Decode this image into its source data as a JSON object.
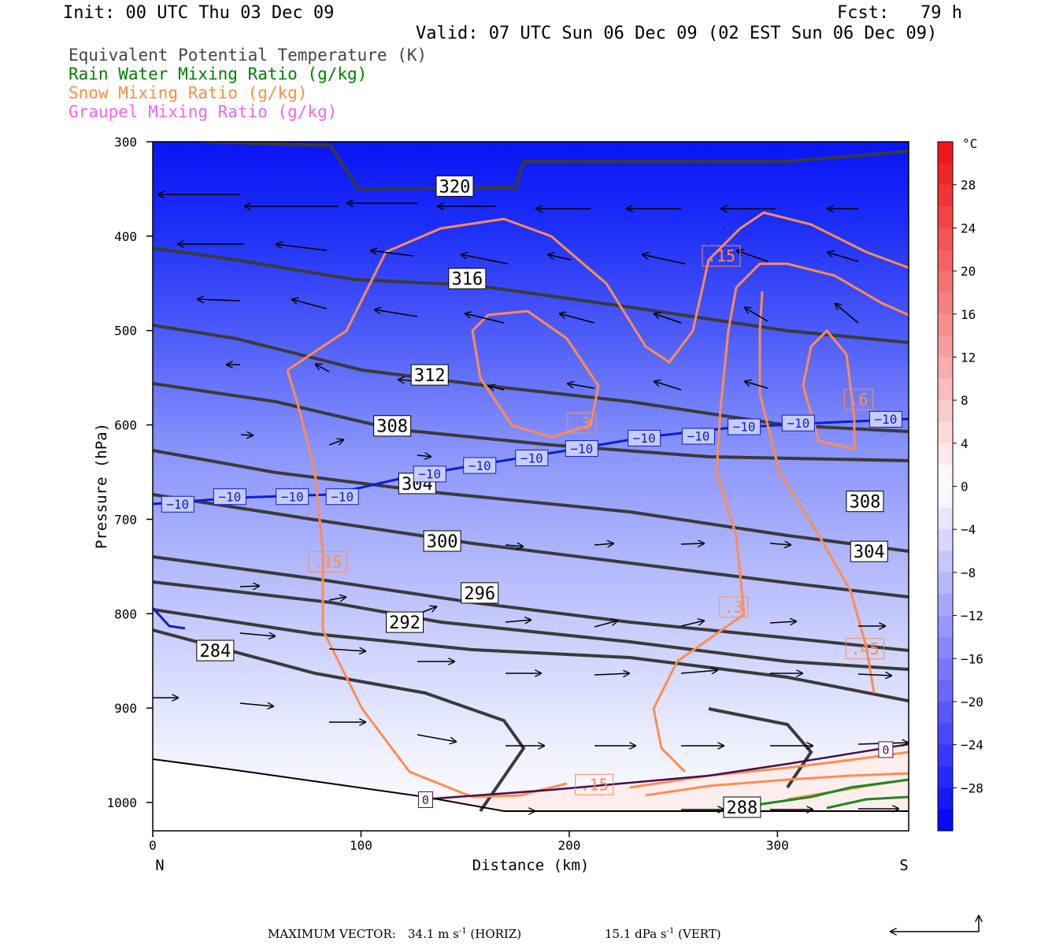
{
  "header": {
    "init": "Init: 00 UTC Thu 03 Dec 09",
    "fcst": "Fcst:   79 h",
    "valid": "Valid: 07 UTC Sun 06 Dec 09 (02 EST Sun 06 Dec 09)"
  },
  "legend": [
    {
      "label": "Equivalent Potential Temperature (K)",
      "color": "#444444"
    },
    {
      "label": "Rain Water Mixing Ratio (g/kg)",
      "color": "#008000"
    },
    {
      "label": "Snow Mixing Ratio (g/kg)",
      "color": "#ff8c40"
    },
    {
      "label": "Graupel Mixing Ratio (g/kg)",
      "color": "#ee66ee"
    }
  ],
  "footer": {
    "max_vector_label": "MAXIMUM VECTOR:",
    "horiz_value": "34.1 m s",
    "horiz_sup": "-1",
    "horiz_tag": "(HORIZ)",
    "vert_value": "15.1 dPa s",
    "vert_sup": "-1",
    "vert_tag": "(VERT)"
  },
  "chart_data": {
    "type": "cross-section",
    "xlabel": "Distance (km)",
    "ylabel": "Pressure (hPa)",
    "xlim": [
      0,
      363
    ],
    "ylim": [
      1030,
      300
    ],
    "x_ticks": [
      0,
      100,
      200,
      300
    ],
    "y_ticks": [
      300,
      400,
      500,
      600,
      700,
      800,
      900,
      1000
    ],
    "x_end_labels": {
      "left": "N",
      "right": "S"
    },
    "colorbar": {
      "unit": "°C",
      "ticks": [
        28,
        24,
        20,
        16,
        12,
        8,
        4,
        0,
        -4,
        -8,
        -12,
        -16,
        -20,
        -24,
        -28
      ]
    },
    "theta_e_contours": [
      {
        "label": "320",
        "x": 145,
        "p": 347
      },
      {
        "label": "316",
        "x": 151,
        "p": 445
      },
      {
        "label": "312",
        "x": 133,
        "p": 547
      },
      {
        "label": "308",
        "x": 115,
        "p": 601
      },
      {
        "label": "304",
        "x": 127,
        "p": 662
      },
      {
        "label": "300",
        "x": 139,
        "p": 723
      },
      {
        "label": "296",
        "x": 157,
        "p": 778
      },
      {
        "label": "292",
        "x": 121,
        "p": 809
      },
      {
        "label": "284",
        "x": 30,
        "p": 839
      },
      {
        "label": "308",
        "x": 342,
        "p": 681
      },
      {
        "label": "304",
        "x": 344,
        "p": 734
      },
      {
        "label": "288",
        "x": 283,
        "p": 1005
      }
    ],
    "temperature_contour_labels": [
      {
        "label": "−10",
        "x": 12,
        "p": 684
      },
      {
        "label": "−10",
        "x": 37,
        "p": 676
      },
      {
        "label": "−10",
        "x": 67,
        "p": 676
      },
      {
        "label": "−10",
        "x": 91,
        "p": 676
      },
      {
        "label": "−10",
        "x": 133,
        "p": 652
      },
      {
        "label": "−10",
        "x": 157,
        "p": 643
      },
      {
        "label": "−10",
        "x": 182,
        "p": 635
      },
      {
        "label": "−10",
        "x": 206,
        "p": 625
      },
      {
        "label": "−10",
        "x": 236,
        "p": 614
      },
      {
        "label": "−10",
        "x": 262,
        "p": 612
      },
      {
        "label": "−10",
        "x": 284,
        "p": 602
      },
      {
        "label": "−10",
        "x": 310,
        "p": 598
      },
      {
        "label": "−10",
        "x": 352,
        "p": 594
      }
    ],
    "snow_contour_labels": [
      {
        "label": ".15",
        "x": 273,
        "p": 421
      },
      {
        "label": ".3",
        "x": 206,
        "p": 598
      },
      {
        "label": ".6",
        "x": 339,
        "p": 573
      },
      {
        "label": ".15",
        "x": 84,
        "p": 745
      },
      {
        "label": ".3",
        "x": 279,
        "p": 793
      },
      {
        "label": ".45",
        "x": 342,
        "p": 837
      },
      {
        "label": ".15",
        "x": 212,
        "p": 981
      }
    ],
    "graupel_contour_labels": [
      {
        "label": "0",
        "x": 131,
        "p": 997
      },
      {
        "label": "0",
        "x": 352,
        "p": 944
      }
    ]
  }
}
